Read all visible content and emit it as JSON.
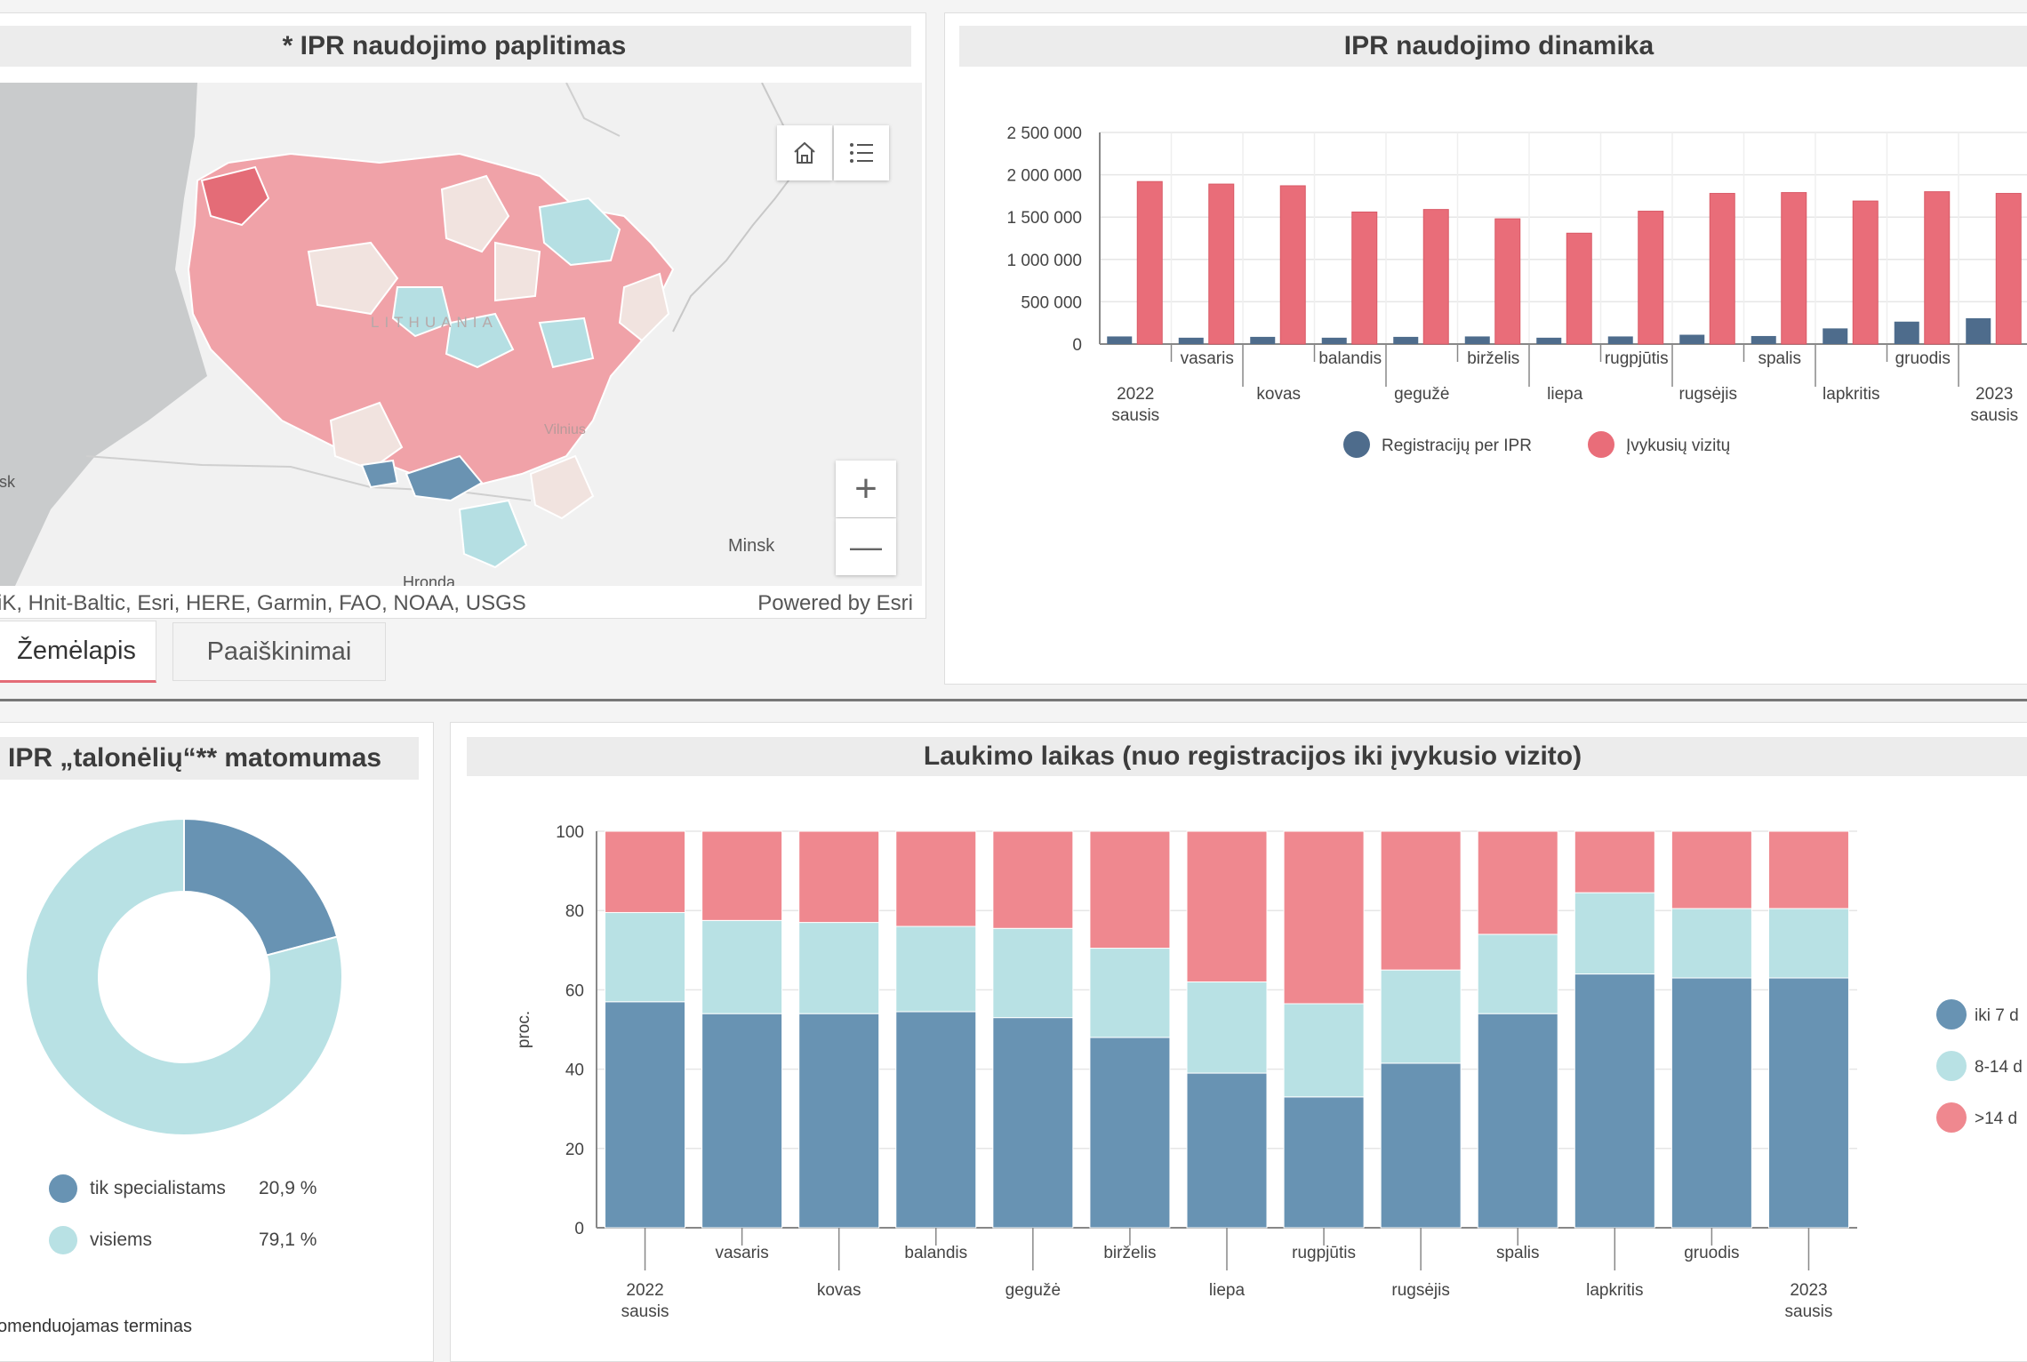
{
  "map_panel": {
    "title": "* IPR naudojimo paplitimas",
    "labels": {
      "country": "LITHUANIA",
      "city_minsk": "Minsk",
      "city_hronda": "Hronda",
      "city_vilnius": "Vilnius",
      "city_cut": "sk"
    },
    "attribution": "iK, Hnit-Baltic, Esri, HERE, Garmin, FAO, NOAA, USGS",
    "powered": "Powered by Esri",
    "zoom_in": "+",
    "zoom_out": "—",
    "tabs": [
      "Žemėlapis",
      "Paaiškinimai"
    ],
    "colors": {
      "sea": "#c9cbcc",
      "land": "#f1f1f1",
      "high": "#e46c77",
      "mid": "#f0a2a8",
      "low": "#f1e3df",
      "teal": "#b5dfe3",
      "dark": "#6a93b2"
    }
  },
  "dynamics_chart": {
    "title": "IPR naudojimo dinamika",
    "chart_data": {
      "type": "bar",
      "ylim": [
        0,
        2500000
      ],
      "yticks": [
        "0",
        "500 000",
        "1 000 000",
        "1 500 000",
        "2 000 000",
        "2 500 000"
      ],
      "tick_values": [
        0,
        500000,
        1000000,
        1500000,
        2000000,
        2500000
      ],
      "categories": [
        "2022\nsausis",
        "vasaris",
        "kovas",
        "balandis",
        "gegužė",
        "birželis",
        "liepa",
        "rugpjūtis",
        "rugsėjis",
        "spalis",
        "lapkritis",
        "gruodis",
        "2023\nsausis"
      ],
      "series": [
        {
          "name": "Registracijų per IPR",
          "color": "#4e6c8c",
          "values": [
            90000,
            75000,
            85000,
            75000,
            85000,
            90000,
            75000,
            90000,
            110000,
            95000,
            185000,
            265000,
            305000
          ]
        },
        {
          "name": "Įvykusių vizitų",
          "color": "#e96d79",
          "values": [
            1920000,
            1890000,
            1870000,
            1560000,
            1590000,
            1480000,
            1310000,
            1570000,
            1780000,
            1790000,
            1690000,
            1800000,
            1780000
          ]
        }
      ]
    }
  },
  "visibility_donut": {
    "title": "IPR „talonėlių“** matomumas",
    "chart_data": {
      "type": "pie",
      "slices": [
        {
          "name": "tik specialistams",
          "value": 20.9,
          "label": "20,9 %",
          "color": "#6893b3"
        },
        {
          "name": "visiems",
          "value": 79.1,
          "label": "79,1 %",
          "color": "#b8e1e4"
        }
      ]
    },
    "footnote": "omenduojamas terminas"
  },
  "waiting_chart": {
    "title": "Laukimo laikas (nuo registracijos iki įvykusio vizito)",
    "chart_data": {
      "type": "bar",
      "stacked": true,
      "ylabel": "proc.",
      "ylim": [
        0,
        100
      ],
      "yticks": [
        "0",
        "20",
        "40",
        "60",
        "80",
        "100"
      ],
      "tick_values": [
        0,
        20,
        40,
        60,
        80,
        100
      ],
      "categories": [
        "2022\nsausis",
        "vasaris",
        "kovas",
        "balandis",
        "gegužė",
        "birželis",
        "liepa",
        "rugpjūtis",
        "rugsėjis",
        "spalis",
        "lapkritis",
        "gruodis",
        "2023\nsausis"
      ],
      "series": [
        {
          "name": "iki 7 d",
          "color": "#6893b3",
          "values": [
            57,
            54,
            54,
            54.5,
            53,
            48,
            39,
            33,
            41.5,
            54,
            64,
            63,
            63
          ]
        },
        {
          "name": "8-14 d",
          "color": "#b8e1e4",
          "values": [
            22.5,
            23.5,
            23,
            21.5,
            22.5,
            22.5,
            23,
            23.5,
            23.5,
            20,
            20.5,
            17.5,
            17.5
          ]
        },
        {
          "name": ">14 d",
          "color": "#ef888f",
          "values": [
            20.5,
            22.5,
            23,
            24,
            24.5,
            29.5,
            38,
            43.5,
            35,
            26,
            15.5,
            19.5,
            19.5
          ]
        }
      ]
    }
  }
}
